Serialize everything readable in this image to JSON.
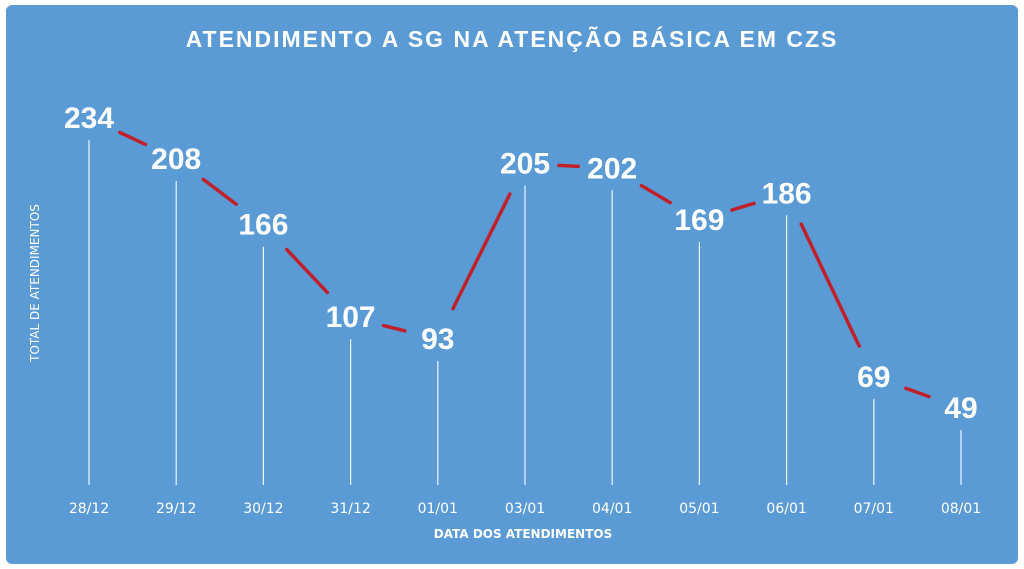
{
  "colors": {
    "background": "#5b9bd5",
    "line": "#c0202a",
    "drop_line": "#ffffff",
    "text": "#ffffff"
  },
  "chart_data": {
    "type": "line",
    "title": "ATENDIMENTO A SG NA ATENÇÃO BÁSICA EM CZS",
    "xlabel": "DATA DOS ATENDIMENTOS",
    "ylabel": "TOTAL DE ATENDIMENTOS",
    "categories": [
      "28/12",
      "29/12",
      "30/12",
      "31/12",
      "01/01",
      "03/01",
      "04/01",
      "05/01",
      "06/01",
      "07/01",
      "08/01"
    ],
    "series": [
      {
        "values": [
          234,
          208,
          166,
          107,
          93,
          205,
          202,
          169,
          186,
          69,
          49
        ]
      }
    ],
    "data_labels": true,
    "drop_lines": true,
    "grid": false,
    "legend": "none",
    "ylim": [
      0,
      250
    ]
  }
}
